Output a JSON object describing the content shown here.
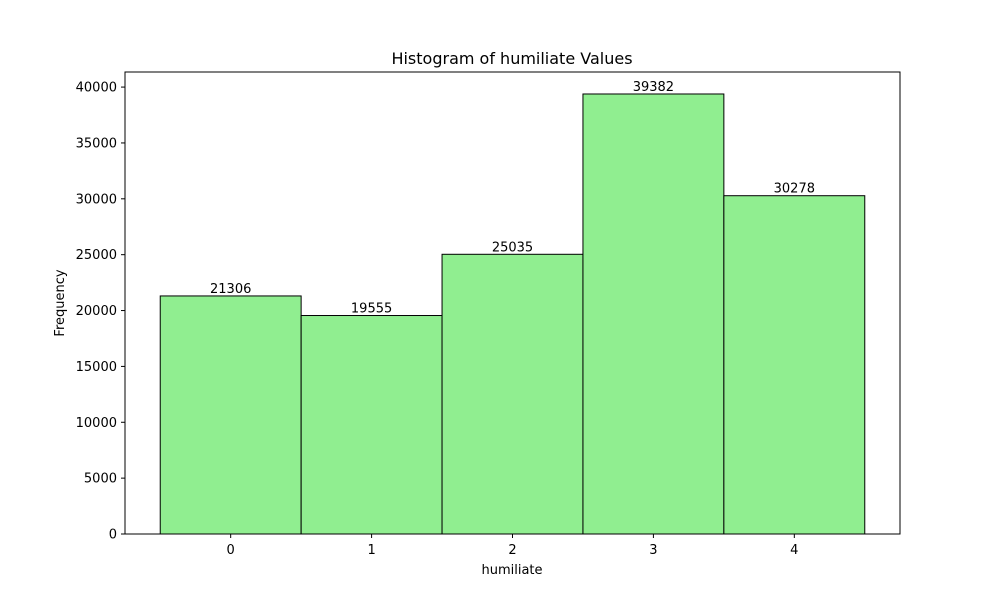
{
  "chart_data": {
    "type": "bar",
    "title": "Histogram of humiliate Values",
    "xlabel": "humiliate",
    "ylabel": "Frequency",
    "categories": [
      "0",
      "1",
      "2",
      "3",
      "4"
    ],
    "values": [
      21306,
      19555,
      25035,
      39382,
      30278
    ],
    "data_labels": [
      "21306",
      "19555",
      "25035",
      "39382",
      "30278"
    ],
    "yticks": [
      0,
      5000,
      10000,
      15000,
      20000,
      25000,
      30000,
      35000,
      40000
    ],
    "ylim": [
      0,
      41350
    ],
    "grid": false,
    "bar_color": "#90ee90",
    "edge_color": "#000000"
  }
}
